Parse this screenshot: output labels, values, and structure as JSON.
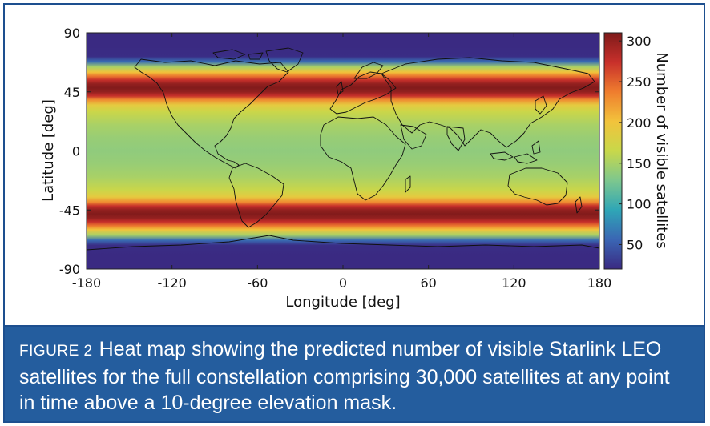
{
  "chart_data": {
    "type": "heatmap",
    "xlabel": "Longitude [deg]",
    "ylabel": "Latitude [deg]",
    "colorbar_label": "Number of visible satellites",
    "xlim": [
      -180,
      180
    ],
    "ylim": [
      -90,
      90
    ],
    "x_ticks": [
      "-180",
      "-120",
      "-60",
      "0",
      "60",
      "120",
      "180"
    ],
    "y_ticks": [
      "90",
      "45",
      "0",
      "-45",
      "-90"
    ],
    "colorbar_range": [
      20,
      310
    ],
    "colorbar_ticks": [
      "300",
      "250",
      "200",
      "150",
      "100",
      "50"
    ],
    "colormap": [
      "#3a2a82",
      "#3a66b4",
      "#2fa6b6",
      "#7dc78e",
      "#c8d84a",
      "#f2c33c",
      "#ef7d2e",
      "#c8302b",
      "#7e1a1a"
    ],
    "latitude_profile": {
      "latitude": [
        90,
        80,
        72,
        68,
        64,
        60,
        57,
        54,
        51,
        48,
        45,
        42,
        39,
        35,
        30,
        20,
        10,
        0,
        -10,
        -20,
        -30,
        -35,
        -39,
        -42,
        -45,
        -48,
        -51,
        -54,
        -57,
        -60,
        -64,
        -68,
        -72,
        -80,
        -90
      ],
      "visible_satellites": [
        20,
        20,
        22,
        60,
        150,
        200,
        240,
        275,
        300,
        308,
        300,
        275,
        230,
        190,
        168,
        150,
        142,
        138,
        142,
        150,
        168,
        190,
        230,
        275,
        300,
        308,
        300,
        275,
        240,
        200,
        150,
        60,
        22,
        20,
        20
      ]
    },
    "overlay": "world coastlines and country borders"
  },
  "caption": {
    "label": "FIGURE 2",
    "text": "Heat map showing the predicted number of visible Starlink LEO satellites for the full constellation comprising 30,000 satellites at any point in time above a 10-degree elevation mask."
  }
}
